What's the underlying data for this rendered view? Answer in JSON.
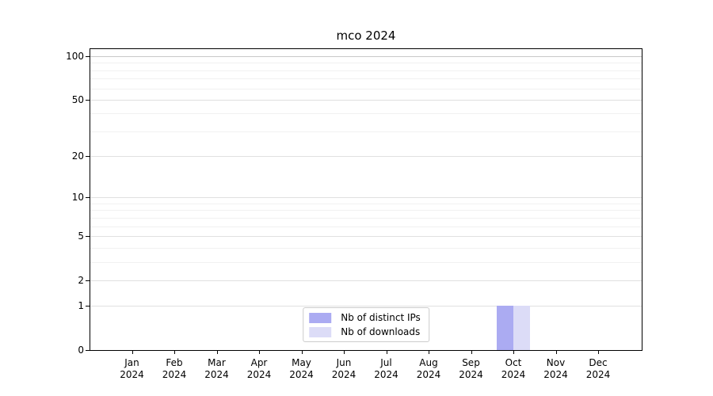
{
  "chart_data": {
    "type": "bar",
    "title": "mco 2024",
    "x_months": [
      "Jan",
      "Feb",
      "Mar",
      "Apr",
      "May",
      "Jun",
      "Jul",
      "Aug",
      "Sep",
      "Oct",
      "Nov",
      "Dec"
    ],
    "x_year": "2024",
    "series": [
      {
        "name": "Nb of distinct IPs",
        "color": "#ababf2",
        "values": [
          0,
          0,
          0,
          0,
          0,
          0,
          0,
          0,
          0,
          1,
          0,
          0
        ]
      },
      {
        "name": "Nb of downloads",
        "color": "#dcdcf7",
        "values": [
          0,
          0,
          0,
          0,
          0,
          0,
          0,
          0,
          0,
          1,
          0,
          0
        ]
      }
    ],
    "y_scale": "log1p",
    "ylim": [
      0,
      100
    ],
    "y_ticks": [
      0,
      1,
      2,
      5,
      10,
      20,
      50,
      100
    ],
    "y_minor_ticks": [
      3,
      4,
      6,
      7,
      8,
      9,
      30,
      40,
      60,
      70,
      80,
      90
    ],
    "grid": true,
    "legend": {
      "position": "lower center",
      "entries": [
        "Nb of distinct IPs",
        "Nb of downloads"
      ]
    }
  },
  "colors": {
    "axis": "#000000",
    "grid_major": "#e0e0e0",
    "grid_minor": "#f1f1f1",
    "grid_top": "#c8c8c8",
    "legend_border": "#cccccc",
    "background": "#ffffff"
  }
}
